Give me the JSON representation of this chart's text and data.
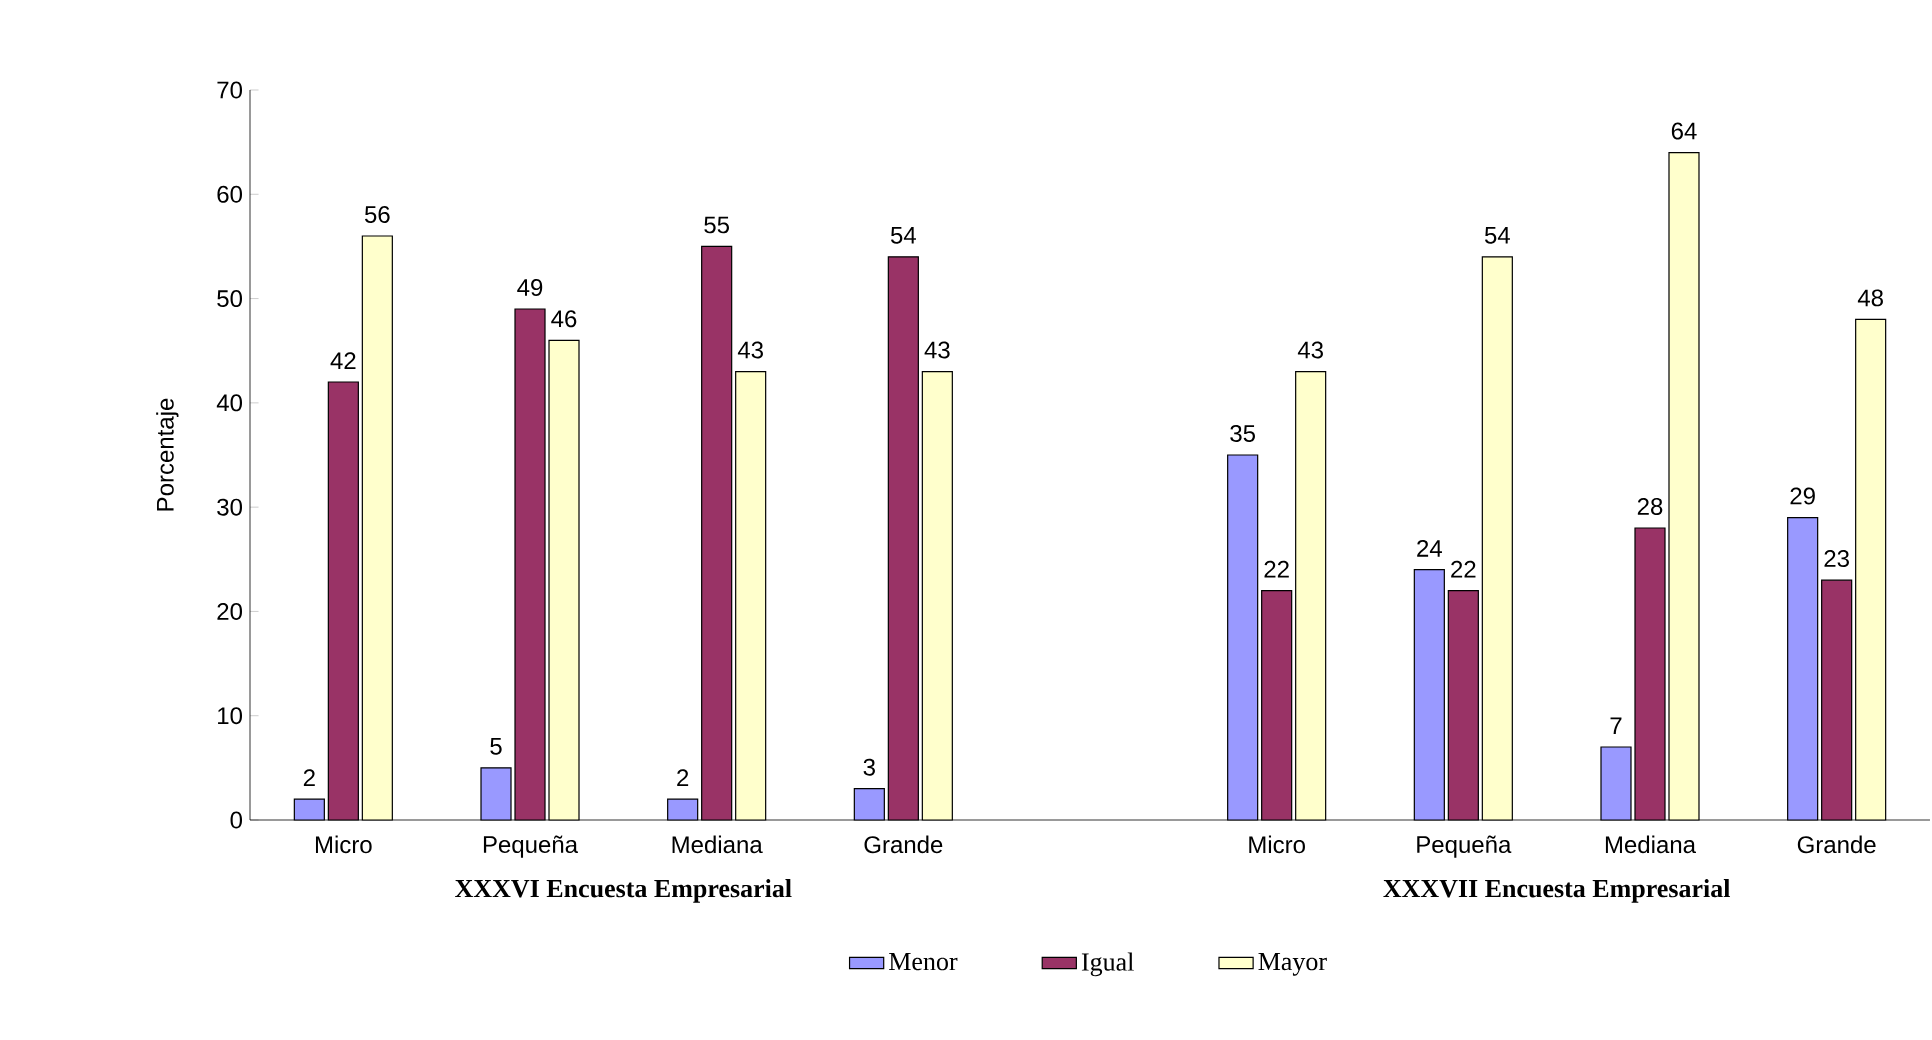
{
  "chart_data": {
    "type": "bar",
    "ylabel": "Porcentaje",
    "categories": [
      "Micro",
      "Pequeña",
      "Mediana",
      "Grande",
      null,
      "Micro",
      "Pequeña",
      "Mediana",
      "Grande"
    ],
    "annotations": [
      "XXXVI Encuesta Empresarial",
      "XXXVII Encuesta Empresarial"
    ],
    "series": [
      {
        "name": "Menor",
        "color": "#9999ff",
        "values": [
          2,
          5,
          2,
          3,
          null,
          35,
          24,
          7,
          29
        ]
      },
      {
        "name": "Igual",
        "color": "#993366",
        "values": [
          42,
          49,
          55,
          54,
          null,
          22,
          22,
          28,
          23
        ]
      },
      {
        "name": "Mayor",
        "color": "#ffffcc",
        "values": [
          56,
          46,
          43,
          43,
          null,
          43,
          54,
          64,
          48
        ]
      }
    ],
    "ylim": [
      0,
      70
    ],
    "yticks": [
      0,
      10,
      20,
      30,
      40,
      50,
      60,
      70
    ],
    "data_labels": true,
    "legend": "bottom",
    "grid": false
  }
}
